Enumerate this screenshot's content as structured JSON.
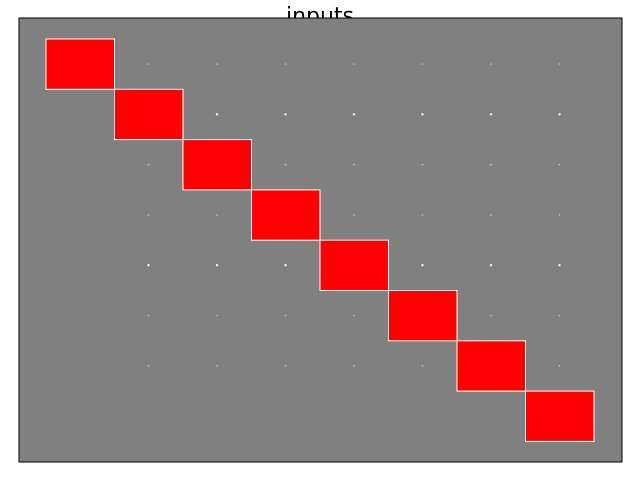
{
  "chart_data": {
    "type": "heatmap",
    "title": "inputs",
    "xlabel": "",
    "ylabel": "",
    "grid": false,
    "background_color": "#808080",
    "cell_color": "#ff0000",
    "cell_edge_color": "#ffffff",
    "dot_color": "#ffffff",
    "rows": 8,
    "cols": 8,
    "active_cells": [
      [
        0,
        0
      ],
      [
        1,
        1
      ],
      [
        2,
        2
      ],
      [
        3,
        3
      ],
      [
        4,
        4
      ],
      [
        5,
        5
      ],
      [
        6,
        6
      ],
      [
        7,
        7
      ]
    ],
    "values": [
      [
        1,
        0,
        0,
        0,
        0,
        0,
        0,
        0
      ],
      [
        0,
        1,
        0,
        0,
        0,
        0,
        0,
        0
      ],
      [
        0,
        0,
        1,
        0,
        0,
        0,
        0,
        0
      ],
      [
        0,
        0,
        0,
        1,
        0,
        0,
        0,
        0
      ],
      [
        0,
        0,
        0,
        0,
        1,
        0,
        0,
        0
      ],
      [
        0,
        0,
        0,
        0,
        0,
        1,
        0,
        0
      ],
      [
        0,
        0,
        0,
        0,
        0,
        0,
        1,
        0
      ],
      [
        0,
        0,
        0,
        0,
        0,
        0,
        0,
        1
      ]
    ],
    "bright_dot_rows": [
      2,
      5
    ]
  }
}
